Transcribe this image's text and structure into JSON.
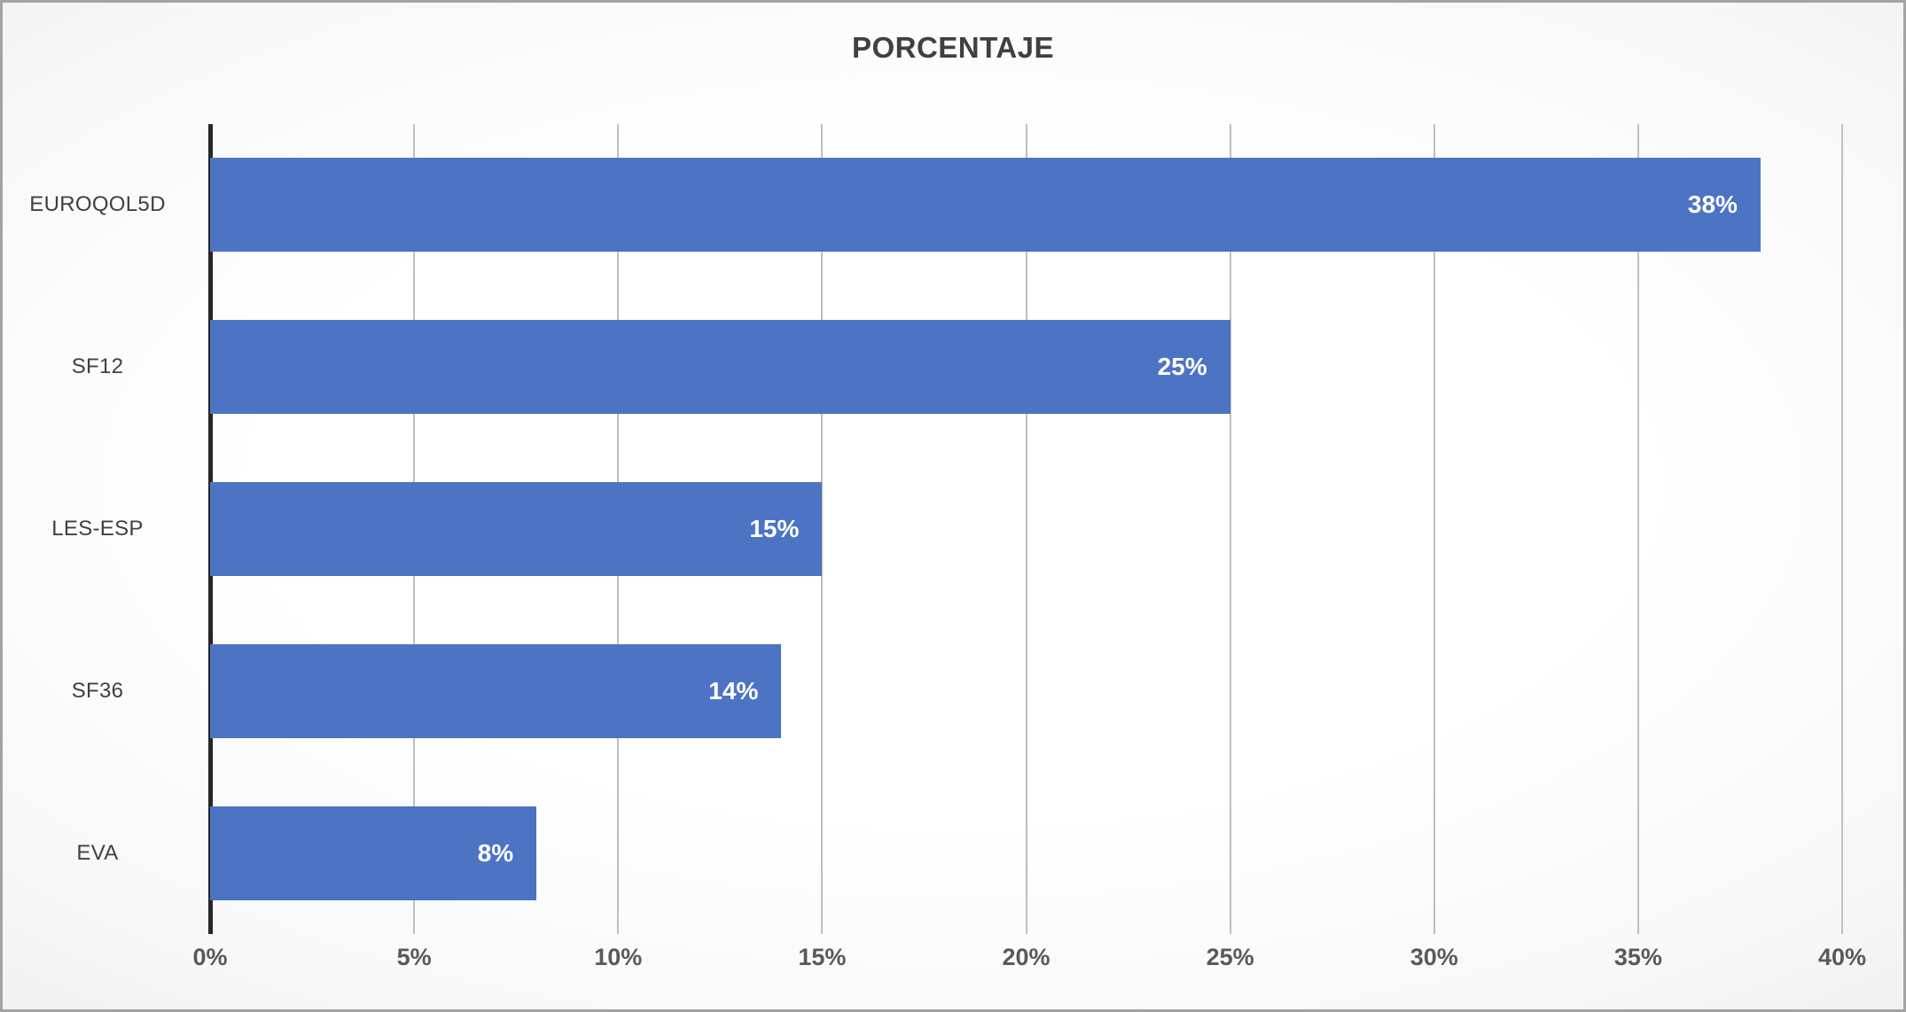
{
  "chart_data": {
    "type": "bar",
    "orientation": "horizontal",
    "title": "PORCENTAJE",
    "categories": [
      "EUROQOL5D",
      "SF12",
      "LES-ESP",
      "SF36",
      "EVA"
    ],
    "values": [
      38,
      25,
      15,
      14,
      8
    ],
    "data_labels": [
      "38%",
      "25%",
      "15%",
      "14%",
      "8%"
    ],
    "x_ticks": [
      "0%",
      "5%",
      "10%",
      "15%",
      "20%",
      "25%",
      "30%",
      "35%",
      "40%"
    ],
    "xlim": [
      0,
      40
    ],
    "grid": "vertical",
    "legend": "none",
    "colors": {
      "bar": "#4D74C4",
      "data_label": "#FFFFFF",
      "title": "#404040",
      "tick_label": "#595959",
      "category_label": "#404040",
      "gridline": "#BFBFBF",
      "axis_line": "#262626"
    }
  }
}
